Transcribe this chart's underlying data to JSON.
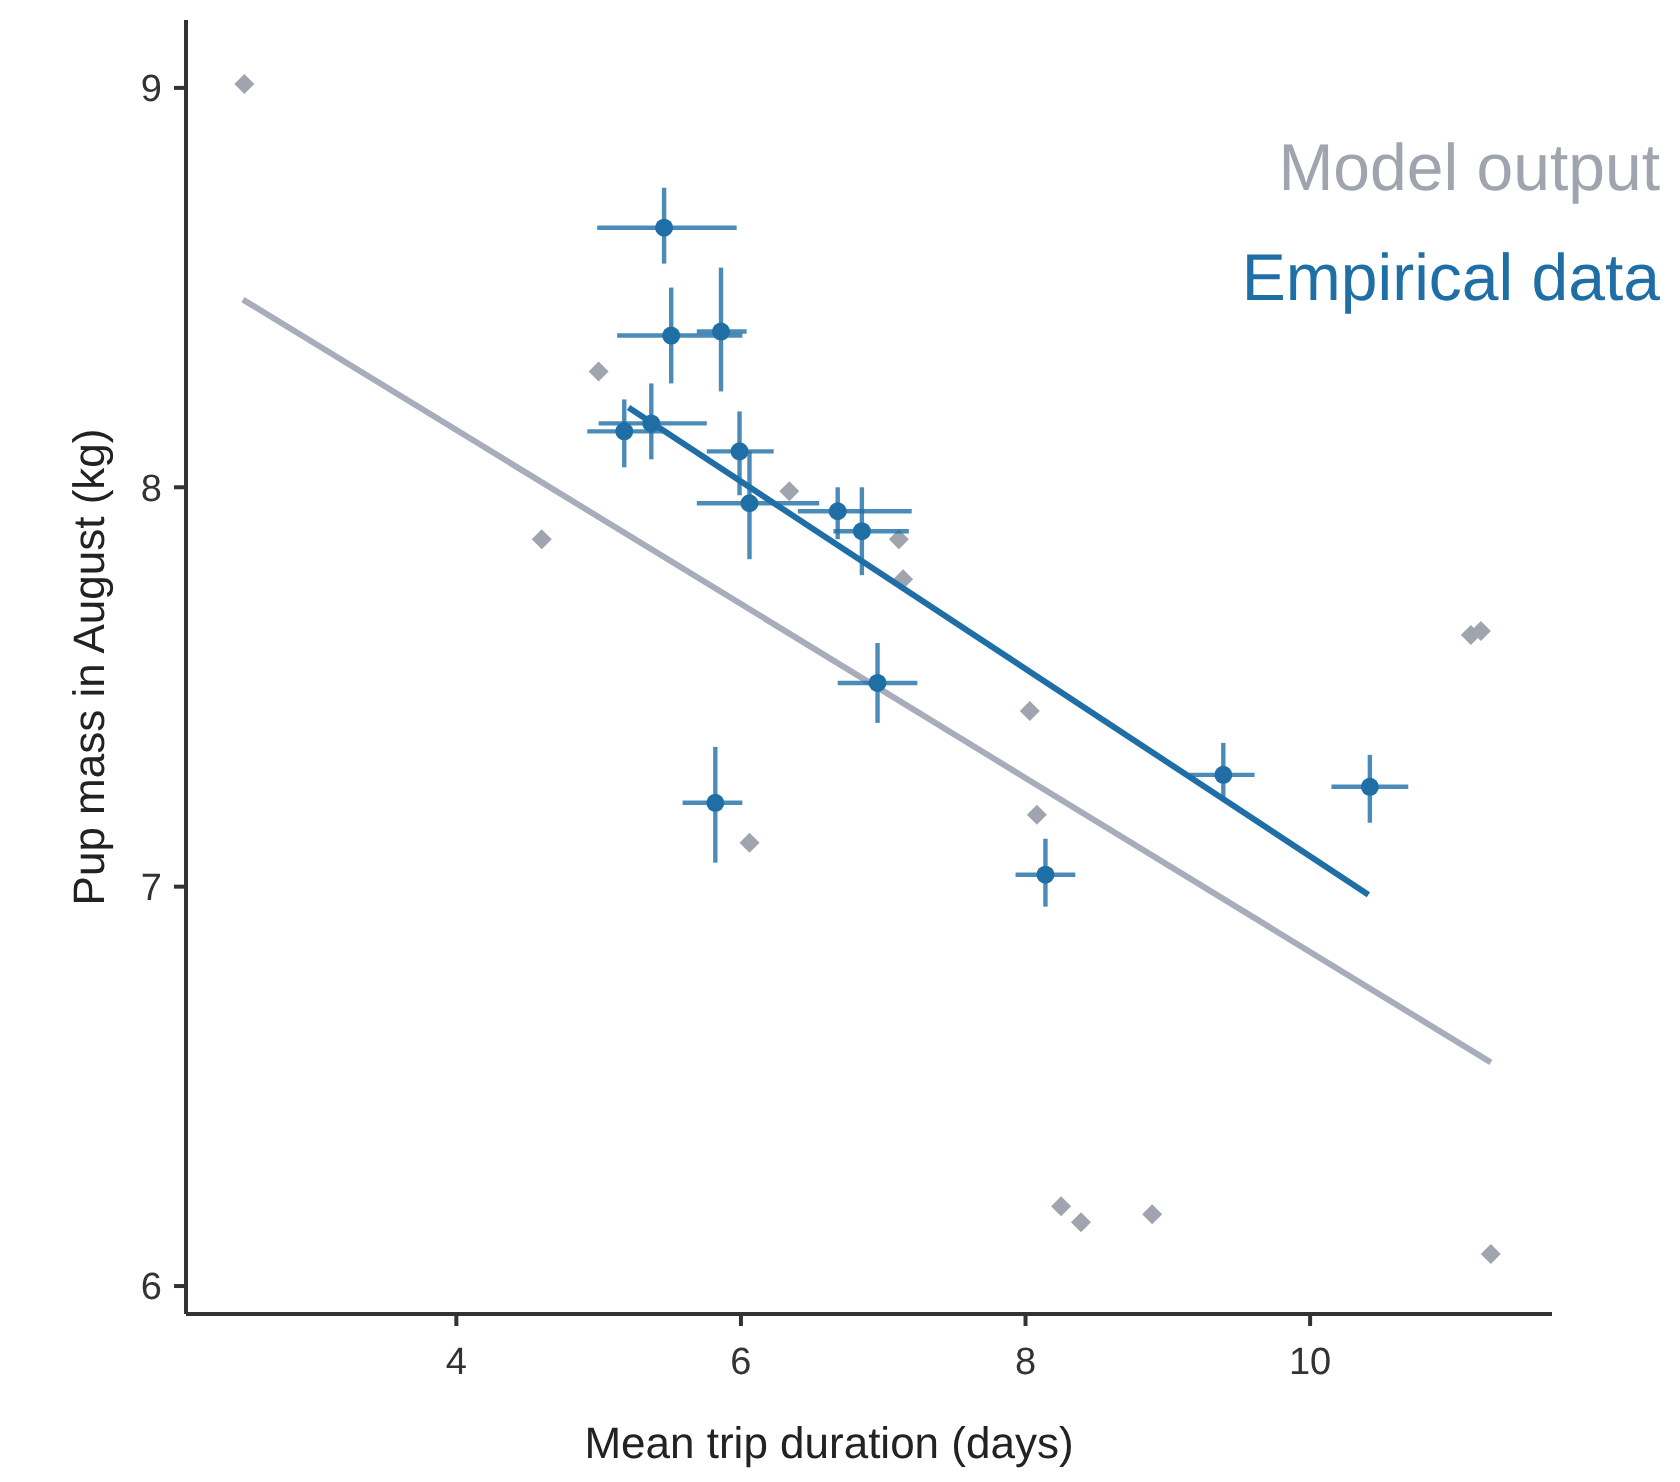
{
  "chart_data": {
    "type": "scatter",
    "xlabel": "Mean trip duration (days)",
    "ylabel": "Pup mass in August (kg)",
    "xlim": [
      2.1,
      11.7
    ],
    "ylim": [
      5.93,
      9.17
    ],
    "xticks": [
      4,
      6,
      8,
      10
    ],
    "yticks": [
      6,
      7,
      8,
      9
    ],
    "grid": false,
    "legend": "top right",
    "series": [
      {
        "name": "Model output",
        "marker": "diamond",
        "color": "#a0a4ae",
        "x": [
          2.51,
          5.0,
          4.6,
          6.34,
          7.11,
          7.14,
          8.03,
          8.08,
          6.06,
          11.13,
          11.2,
          8.25,
          8.39,
          8.89,
          11.27
        ],
        "values": [
          9.01,
          8.29,
          7.87,
          7.99,
          7.87,
          7.77,
          7.44,
          7.18,
          7.11,
          7.63,
          7.64,
          6.2,
          6.16,
          6.18,
          6.08
        ]
      },
      {
        "type": "line",
        "marker": "none",
        "line_style": "solid",
        "color": "#a8adbb",
        "x": [
          2.5,
          11.27
        ],
        "values": [
          8.47,
          6.56
        ]
      },
      {
        "name": "Empirical data",
        "marker": "circle",
        "color": "#1f6fa6",
        "x": [
          5.46,
          5.51,
          5.86,
          5.18,
          5.37,
          5.99,
          6.06,
          6.68,
          6.85,
          6.96,
          5.82,
          8.14,
          9.39,
          10.42
        ],
        "values": [
          8.65,
          8.38,
          8.39,
          8.14,
          8.16,
          8.09,
          7.96,
          7.94,
          7.89,
          7.51,
          7.21,
          7.03,
          7.28,
          7.25
        ],
        "errors": [
          [
            8.56,
            8.75
          ],
          [
            8.26,
            8.5
          ],
          [
            8.24,
            8.55
          ],
          [
            8.05,
            8.22
          ],
          [
            8.07,
            8.26
          ],
          [
            7.98,
            8.19
          ],
          [
            7.82,
            8.09
          ],
          [
            7.87,
            8.0
          ],
          [
            7.78,
            8.0
          ],
          [
            7.41,
            7.61
          ],
          [
            7.06,
            7.35
          ],
          [
            6.95,
            7.12
          ],
          [
            7.22,
            7.36
          ],
          [
            7.16,
            7.33
          ]
        ],
        "xerrors": [
          [
            4.99,
            5.97
          ],
          [
            5.13,
            6.01
          ],
          [
            5.69,
            6.04
          ],
          [
            4.92,
            5.45
          ],
          [
            5.0,
            5.76
          ],
          [
            5.76,
            6.23
          ],
          [
            5.69,
            6.55
          ],
          [
            6.4,
            7.2
          ],
          [
            6.65,
            7.18
          ],
          [
            6.68,
            7.24
          ],
          [
            5.59,
            6.01
          ],
          [
            7.93,
            8.35
          ],
          [
            9.15,
            9.61
          ],
          [
            10.15,
            10.69
          ]
        ]
      },
      {
        "type": "line",
        "marker": "none",
        "line_style": "solid",
        "color": "#1f6fa6",
        "x": [
          5.21,
          10.41
        ],
        "values": [
          8.2,
          6.98
        ]
      }
    ]
  }
}
